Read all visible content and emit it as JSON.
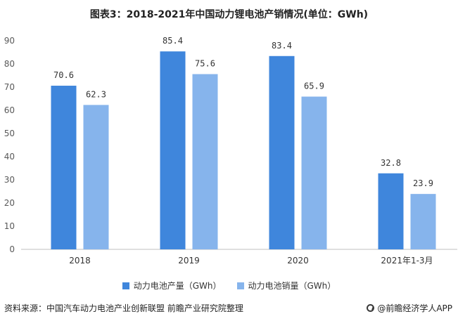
{
  "title": "图表3：2018-2021年中国动力锂电池产销情况(单位：GWh)",
  "footer": {
    "source": "资料来源：中国汽车动力电池产业创新联盟 前瞻产业研究院整理",
    "brand": "@前瞻经济学人APP"
  },
  "colors": {
    "production": "#3f86dc",
    "sales": "#86b4ec",
    "axis": "#bfbfbf",
    "text": "#595959"
  },
  "chart_data": {
    "type": "bar",
    "title": "图表3：2018-2021年中国动力锂电池产销情况(单位：GWh)",
    "categories": [
      "2018",
      "2019",
      "2020",
      "2021年1-3月"
    ],
    "series": [
      {
        "name": "动力电池产量（GWh）",
        "values": [
          70.6,
          85.4,
          83.4,
          32.8
        ]
      },
      {
        "name": "动力电池销量（GWh）",
        "values": [
          62.3,
          75.6,
          65.9,
          23.9
        ]
      }
    ],
    "value_labels": [
      [
        "70.6",
        "85.4",
        "83.4",
        "32.8"
      ],
      [
        "62.3",
        "75.6",
        "65.9",
        "23.9"
      ]
    ],
    "ylim": [
      0,
      90
    ],
    "yticks": [
      "0",
      "10",
      "20",
      "30",
      "40",
      "50",
      "60",
      "70",
      "80",
      "90"
    ],
    "grid": false,
    "legend_position": "bottom"
  }
}
